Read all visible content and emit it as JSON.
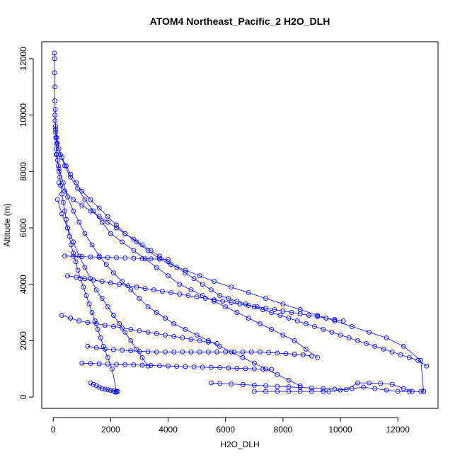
{
  "chart_data": {
    "type": "scatter",
    "title": "ATOM4 Northeast_Pacific_2 H2O_DLH",
    "xlabel": "H2O_DLH",
    "ylabel": "Altitude (m)",
    "xlim": [
      -400,
      13400
    ],
    "ylim": [
      -400,
      12600
    ],
    "x_ticks": [
      0,
      2000,
      4000,
      6000,
      8000,
      10000,
      12000
    ],
    "y_ticks": [
      0,
      2000,
      4000,
      6000,
      8000,
      10000,
      12000
    ],
    "x_tick_labels": [
      "0",
      "2000",
      "4000",
      "6000",
      "8000",
      "10000",
      "12000"
    ],
    "y_tick_labels": [
      "0",
      "2000",
      "4000",
      "6000",
      "8000",
      "10000",
      "12000"
    ],
    "grid": false,
    "marker": "open-circle",
    "connected": true,
    "series_color": "#0000ff",
    "series": [
      {
        "x": [
          40,
          50,
          45,
          60,
          55,
          70,
          65,
          80,
          90,
          110,
          100,
          130,
          150,
          180,
          200,
          230,
          260,
          300,
          350,
          400,
          450,
          500,
          560,
          620,
          700,
          780,
          860,
          950,
          1050,
          1150,
          1250,
          1350,
          1450,
          1550,
          1650,
          1750,
          1900,
          2050,
          2200
        ],
        "y": [
          12200,
          12000,
          11500,
          11000,
          10500,
          10200,
          9800,
          9500,
          9200,
          9000,
          8800,
          8600,
          8400,
          8200,
          8000,
          7800,
          7500,
          7200,
          6900,
          6600,
          6300,
          6000,
          5700,
          5400,
          5100,
          4800,
          4500,
          4200,
          3900,
          3600,
          3300,
          3000,
          2700,
          2400,
          2100,
          1800,
          1400,
          1000,
          200
        ]
      },
      {
        "x": [
          60,
          80,
          120,
          200,
          300,
          450,
          600,
          800,
          1000,
          1300,
          1600,
          1900,
          2200,
          2500,
          2900,
          3300,
          3700,
          4100,
          4600,
          5100,
          5600,
          6200,
          6800,
          7400,
          8000,
          8600,
          9200,
          9800,
          10400,
          11000,
          11600,
          12200,
          12800,
          12900
        ],
        "y": [
          10000,
          9600,
          9200,
          8800,
          8500,
          8200,
          7900,
          7600,
          7300,
          7000,
          6700,
          6400,
          6100,
          5800,
          5500,
          5200,
          4900,
          4700,
          4500,
          4300,
          4100,
          3900,
          3700,
          3500,
          3300,
          3100,
          2900,
          2700,
          2500,
          2300,
          2100,
          1800,
          1300,
          200
        ]
      },
      {
        "x": [
          80,
          150,
          250,
          400,
          600,
          850,
          1100,
          1400,
          1700,
          2000,
          2400,
          2800,
          3200,
          3600,
          4000,
          4400,
          4800,
          5200,
          5600,
          6000,
          6400,
          6800,
          7200,
          7600,
          8000,
          8400,
          8800,
          9200
        ],
        "y": [
          9400,
          9000,
          8600,
          8200,
          7800,
          7400,
          7000,
          6600,
          6200,
          5800,
          5500,
          5200,
          4900,
          4600,
          4300,
          4000,
          3800,
          3600,
          3400,
          3200,
          3000,
          2800,
          2600,
          2400,
          2200,
          2000,
          1700,
          1400
        ]
      },
      {
        "x": [
          100,
          200,
          350,
          500,
          700,
          900,
          1100,
          1350,
          1600,
          1850,
          2100,
          2400,
          2700,
          3000,
          3300,
          3600,
          3900,
          4200,
          4600,
          5000,
          5400,
          5800,
          6200,
          6600,
          7000,
          7400,
          7800,
          8200,
          8600
        ],
        "y": [
          8600,
          8100,
          7600,
          7100,
          6600,
          6200,
          5800,
          5400,
          5000,
          4700,
          4400,
          4100,
          3800,
          3500,
          3200,
          3000,
          2800,
          2600,
          2400,
          2200,
          2000,
          1800,
          1600,
          1400,
          1200,
          1000,
          800,
          600,
          400
        ]
      },
      {
        "x": [
          150,
          300,
          500,
          700,
          900,
          1100,
          1300,
          1500,
          1700,
          1900,
          2100,
          2300,
          2500,
          2700,
          2900,
          3100,
          3300
        ],
        "y": [
          7000,
          6500,
          6000,
          5500,
          5000,
          4600,
          4200,
          3800,
          3500,
          3200,
          2900,
          2600,
          2300,
          2000,
          1700,
          1400,
          1100
        ]
      },
      {
        "x": [
          200,
          400,
          700,
          1000,
          1300,
          1600,
          1900,
          2200,
          2500,
          2800,
          3100,
          3400,
          3700,
          4000,
          4300,
          4600,
          4900,
          5200,
          5500,
          5800,
          6100,
          6400,
          6700,
          7000,
          7300,
          7600,
          7900,
          8200,
          8500,
          8800,
          9100,
          9400,
          9700,
          10000,
          10300,
          10600,
          10900,
          11200,
          11500,
          11800,
          12100,
          12400,
          12700,
          13000
        ],
        "y": [
          7600,
          7300,
          7000,
          6800,
          6600,
          6400,
          6200,
          6000,
          5800,
          5600,
          5400,
          5200,
          5000,
          4800,
          4600,
          4400,
          4200,
          4000,
          3800,
          3600,
          3500,
          3400,
          3300,
          3200,
          3100,
          3000,
          2900,
          2800,
          2700,
          2600,
          2500,
          2400,
          2300,
          2200,
          2100,
          2000,
          1900,
          1800,
          1700,
          1600,
          1500,
          1400,
          1300,
          1100
        ]
      },
      {
        "x": [
          1200,
          1500,
          1800,
          2100,
          2400,
          2700,
          3000,
          3300,
          3600,
          3900,
          4200,
          4500,
          4800,
          5100,
          5400,
          5700,
          6000,
          6300,
          6600,
          6900,
          7200,
          7500,
          7800,
          8100,
          8400,
          8700,
          9000
        ],
        "y": [
          1800,
          1750,
          1700,
          1680,
          1660,
          1640,
          1620,
          1610,
          1600,
          1600,
          1600,
          1600,
          1600,
          1600,
          1600,
          1600,
          1600,
          1600,
          1600,
          1600,
          1600,
          1580,
          1560,
          1540,
          1520,
          1500,
          1450
        ]
      },
      {
        "x": [
          5500,
          5800,
          6200,
          6600,
          7000,
          7400,
          7800,
          8200,
          8600,
          9000,
          9400,
          9800,
          10200,
          10600,
          11000,
          11400,
          11800,
          12200,
          12500
        ],
        "y": [
          500,
          480,
          460,
          440,
          420,
          400,
          380,
          360,
          340,
          320,
          300,
          280,
          260,
          500,
          500,
          480,
          450,
          300,
          200
        ]
      },
      {
        "x": [
          7000,
          7400,
          7800,
          8200,
          8600,
          9000,
          9400,
          9600,
          10000,
          10400,
          10800,
          11200,
          11600,
          12000,
          12400,
          12800,
          12900
        ],
        "y": [
          200,
          200,
          200,
          200,
          200,
          200,
          200,
          200,
          250,
          300,
          350,
          300,
          250,
          200,
          200,
          200,
          200
        ]
      },
      {
        "x": [
          500,
          800,
          1100,
          1400,
          1700,
          2000,
          2300,
          2600,
          2900,
          3200,
          3500,
          3800,
          4100,
          4400,
          4700,
          5000,
          5300,
          5600,
          5900,
          6200,
          6500,
          6800,
          7100,
          7400,
          7700,
          8000,
          8300,
          8600,
          8900,
          9200,
          9500,
          9800,
          10100
        ],
        "y": [
          4300,
          4250,
          4200,
          4150,
          4100,
          4050,
          4000,
          3950,
          3900,
          3850,
          3800,
          3750,
          3700,
          3650,
          3600,
          3550,
          3500,
          3450,
          3400,
          3350,
          3300,
          3250,
          3200,
          3150,
          3100,
          3050,
          3000,
          2950,
          2900,
          2850,
          2800,
          2750,
          2700
        ]
      },
      {
        "x": [
          300,
          600,
          900,
          1200,
          1500,
          1800,
          2100,
          2400,
          2700,
          3000,
          3300,
          3600,
          3900,
          4200,
          4500,
          4800,
          5100,
          5400,
          5700
        ],
        "y": [
          2900,
          2800,
          2700,
          2650,
          2600,
          2550,
          2500,
          2450,
          2400,
          2350,
          2300,
          2250,
          2200,
          2150,
          2100,
          2050,
          2000,
          1950,
          1900
        ]
      },
      {
        "x": [
          400,
          700,
          1000,
          1300,
          1600,
          1900,
          2200,
          2500,
          2800,
          3100,
          3400,
          3700,
          4000
        ],
        "y": [
          5000,
          4990,
          4980,
          4970,
          4960,
          4950,
          4940,
          4930,
          4920,
          4910,
          4900,
          4890,
          4880
        ]
      },
      {
        "x": [
          1000,
          1300,
          1600,
          1900,
          2200,
          2500,
          2800,
          3100,
          3400,
          3700,
          4000,
          4300,
          4600,
          4900,
          5200,
          5500,
          5800,
          6100,
          6400,
          6700,
          7000,
          7300,
          7600
        ],
        "y": [
          1200,
          1190,
          1180,
          1170,
          1160,
          1150,
          1140,
          1130,
          1120,
          1110,
          1100,
          1090,
          1080,
          1070,
          1060,
          1050,
          1040,
          1030,
          1020,
          1010,
          1000,
          990,
          980
        ]
      },
      {
        "x": [
          1300,
          1400,
          1500,
          1600,
          1700,
          1800,
          1900,
          2000,
          2100,
          2200,
          2250,
          2200,
          2150
        ],
        "y": [
          500,
          450,
          400,
          350,
          300,
          280,
          260,
          240,
          220,
          200,
          200,
          180,
          180
        ]
      }
    ]
  }
}
